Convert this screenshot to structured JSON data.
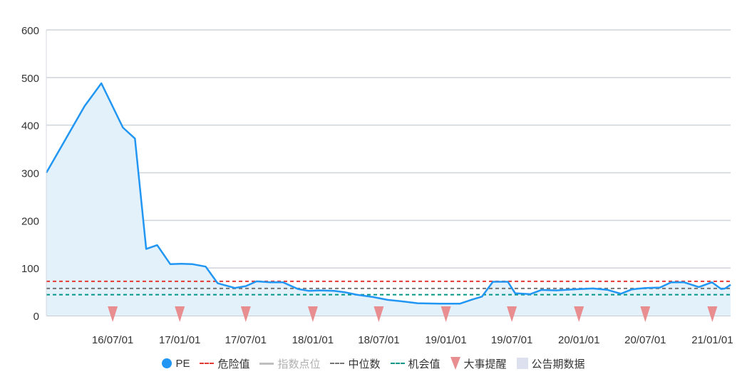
{
  "chart_data": {
    "type": "line",
    "ylim": [
      0,
      600
    ],
    "y_ticks": [
      "0",
      "100",
      "200",
      "300",
      "400",
      "500",
      "600"
    ],
    "x_range": [
      "2016-01-01",
      "2021-02-20"
    ],
    "x_ticks": [
      {
        "date": "2016-07-01",
        "label": "16/07/01"
      },
      {
        "date": "2017-01-01",
        "label": "17/01/01"
      },
      {
        "date": "2017-07-01",
        "label": "17/07/01"
      },
      {
        "date": "2018-01-01",
        "label": "18/01/01"
      },
      {
        "date": "2018-07-01",
        "label": "18/07/01"
      },
      {
        "date": "2019-01-01",
        "label": "19/01/01"
      },
      {
        "date": "2019-07-01",
        "label": "19/07/01"
      },
      {
        "date": "2020-01-01",
        "label": "20/01/01"
      },
      {
        "date": "2020-07-01",
        "label": "20/07/01"
      },
      {
        "date": "2021-01-01",
        "label": "21/01/01"
      }
    ],
    "grid": true,
    "series": [
      {
        "name": "PE",
        "color": "#2196f3",
        "fill": "#e3f1fb",
        "points": [
          [
            "2016-01-01",
            300
          ],
          [
            "2016-04-15",
            440
          ],
          [
            "2016-05-31",
            488
          ],
          [
            "2016-07-29",
            395
          ],
          [
            "2016-08-31",
            372
          ],
          [
            "2016-10-01",
            140
          ],
          [
            "2016-10-31",
            148
          ],
          [
            "2016-12-06",
            108
          ],
          [
            "2017-01-05",
            109
          ],
          [
            "2017-02-05",
            108
          ],
          [
            "2017-03-13",
            103
          ],
          [
            "2017-04-15",
            68
          ],
          [
            "2017-06-01",
            58
          ],
          [
            "2017-07-01",
            62
          ],
          [
            "2017-07-31",
            72
          ],
          [
            "2017-09-06",
            70
          ],
          [
            "2017-10-11",
            70
          ],
          [
            "2017-11-21",
            56
          ],
          [
            "2017-12-20",
            52
          ],
          [
            "2018-01-20",
            53
          ],
          [
            "2018-02-28",
            52
          ],
          [
            "2018-03-31",
            49
          ],
          [
            "2018-05-01",
            44
          ],
          [
            "2018-06-15",
            39
          ],
          [
            "2018-07-25",
            33
          ],
          [
            "2018-09-01",
            30
          ],
          [
            "2018-10-15",
            26
          ],
          [
            "2018-12-15",
            25
          ],
          [
            "2019-02-08",
            25
          ],
          [
            "2019-03-15",
            34
          ],
          [
            "2019-04-10",
            40
          ],
          [
            "2019-05-10",
            71
          ],
          [
            "2019-06-20",
            71
          ],
          [
            "2019-07-10",
            47
          ],
          [
            "2019-08-20",
            45
          ],
          [
            "2019-09-20",
            54
          ],
          [
            "2019-10-31",
            53
          ],
          [
            "2019-12-15",
            55
          ],
          [
            "2020-02-08",
            57
          ],
          [
            "2020-03-20",
            54
          ],
          [
            "2020-04-25",
            46
          ],
          [
            "2020-05-25",
            55
          ],
          [
            "2020-07-01",
            58
          ],
          [
            "2020-08-10",
            59
          ],
          [
            "2020-09-10",
            70
          ],
          [
            "2020-10-15",
            70
          ],
          [
            "2020-11-25",
            60
          ],
          [
            "2020-12-31",
            70
          ],
          [
            "2021-01-25",
            56
          ],
          [
            "2021-02-05",
            57
          ],
          [
            "2021-02-20",
            65
          ]
        ]
      }
    ],
    "reference_lines": [
      {
        "name": "危险值",
        "value": 72,
        "color": "#e53935",
        "style": "dashed"
      },
      {
        "name": "中位数",
        "value": 57,
        "color": "#757575",
        "style": "dashed"
      },
      {
        "name": "机会值",
        "value": 44,
        "color": "#009688",
        "style": "dashed"
      }
    ],
    "event_markers": {
      "name": "大事提醒",
      "color": "#e88e90",
      "dates": [
        "2016-07-01",
        "2017-01-01",
        "2017-07-01",
        "2018-01-01",
        "2018-07-01",
        "2019-01-01",
        "2019-07-01",
        "2020-01-01",
        "2020-07-01",
        "2021-01-01"
      ]
    },
    "legend": {
      "placement": "bottom-center",
      "items": [
        {
          "label": "PE",
          "swatch": "circle",
          "color": "#2196f3"
        },
        {
          "label": "危险值",
          "swatch": "dash",
          "color": "#e53935"
        },
        {
          "label": "指数点位",
          "swatch": "solid",
          "color": "#c0c0c0",
          "inactive": true
        },
        {
          "label": "中位数",
          "swatch": "dash",
          "color": "#757575"
        },
        {
          "label": "机会值",
          "swatch": "dash",
          "color": "#009688"
        },
        {
          "label": "大事提醒",
          "swatch": "triangle",
          "color": "#e88e90"
        },
        {
          "label": "公告期数据",
          "swatch": "rect",
          "color": "#dde0ee"
        }
      ]
    }
  }
}
